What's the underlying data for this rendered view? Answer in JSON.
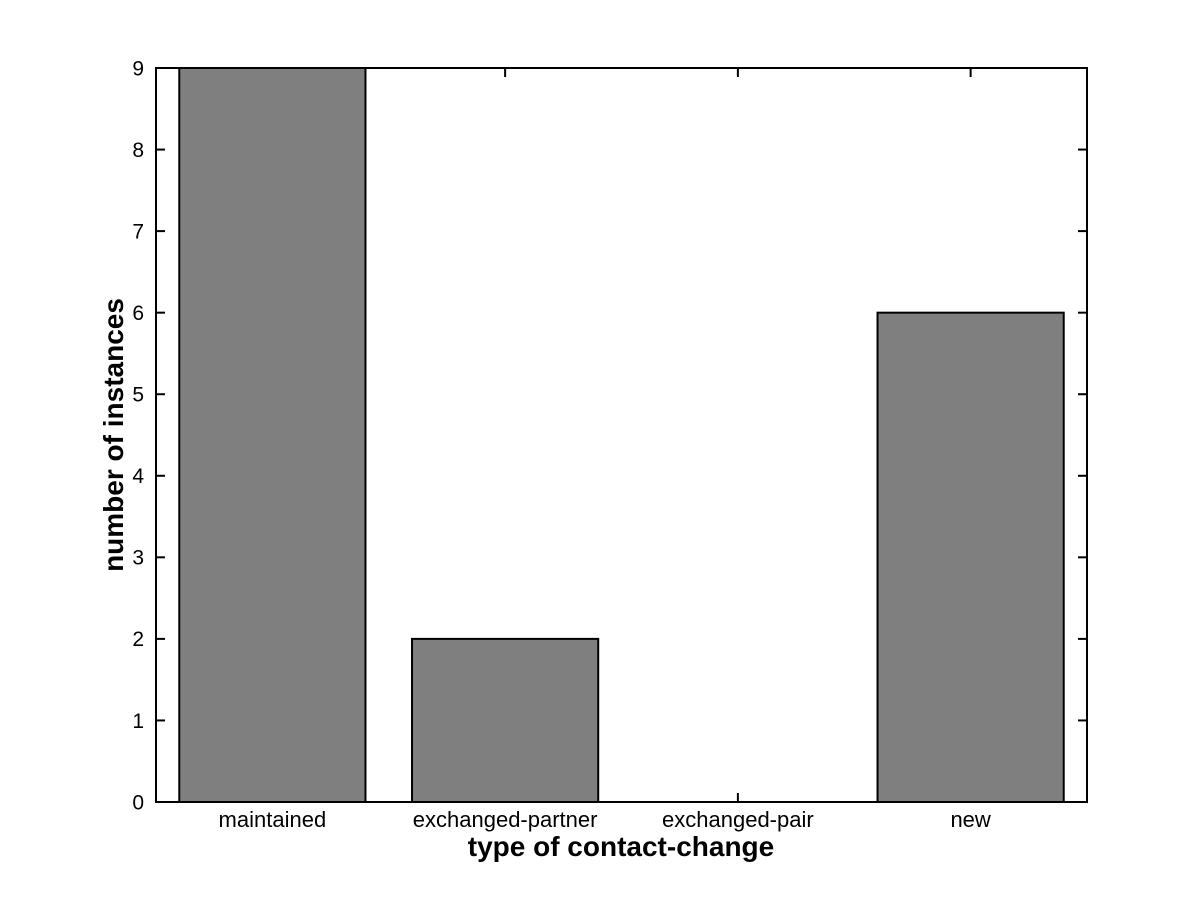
{
  "figure": {
    "background": "#ffffff"
  },
  "chart_data": {
    "type": "bar",
    "title": "",
    "xlabel": "type of contact-change",
    "ylabel": "number of instances",
    "categories": [
      "maintained",
      "exchanged-partner",
      "exchanged-pair",
      "new"
    ],
    "values": [
      9,
      2,
      0,
      6
    ],
    "ylim": [
      0,
      9
    ],
    "yticks": [
      0,
      1,
      2,
      3,
      4,
      5,
      6,
      7,
      8,
      9
    ],
    "bar_width_fraction": 0.8,
    "grid": false,
    "legend_position": "none",
    "colors": {
      "bar_fill": "#7f7f7f",
      "bar_edge": "#000000",
      "axis": "#000000",
      "text": "#000000",
      "plot_background": "#ffffff"
    }
  }
}
